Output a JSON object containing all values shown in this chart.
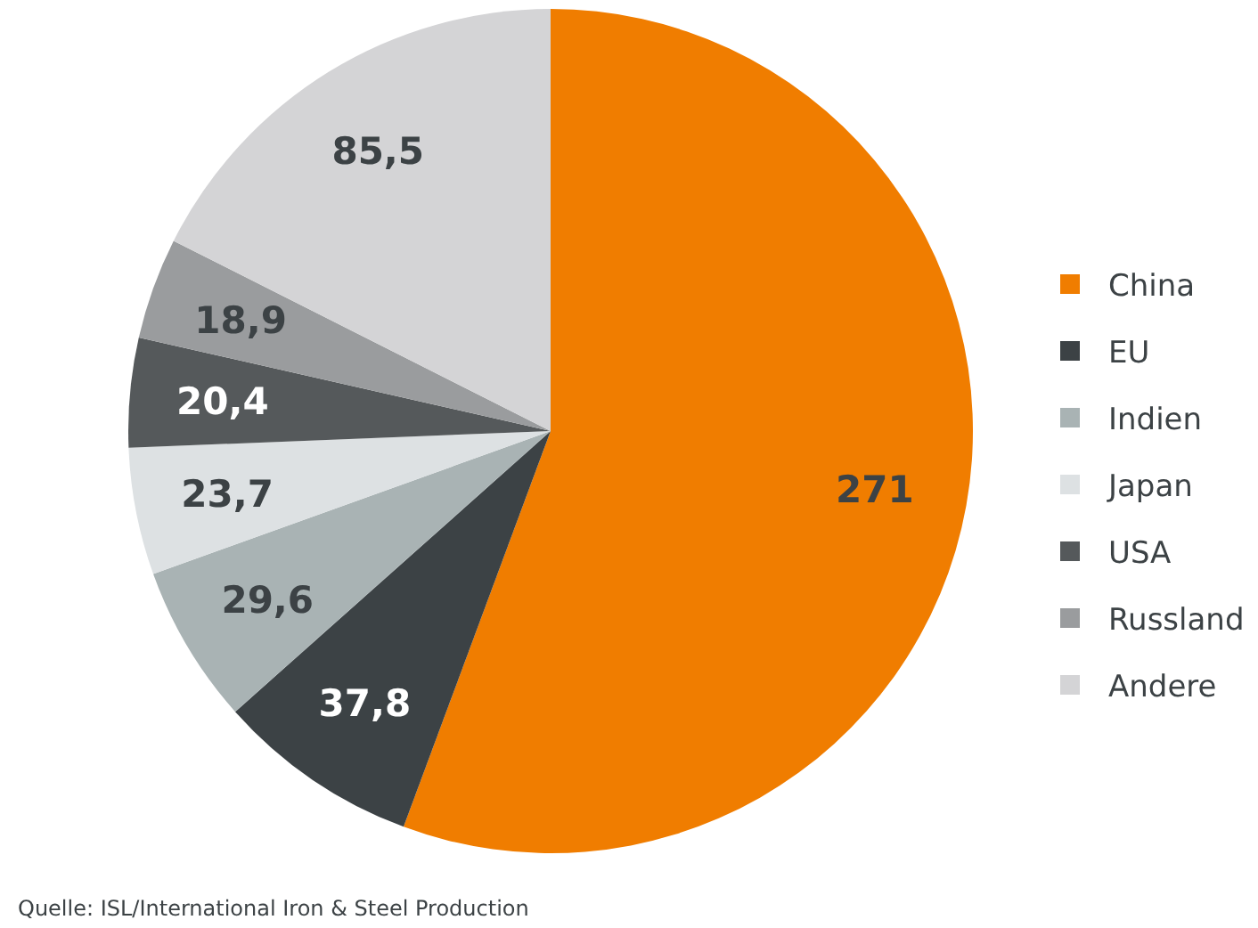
{
  "chart_data": {
    "type": "pie",
    "categories": [
      "China",
      "EU",
      "Indien",
      "Japan",
      "USA",
      "Russland",
      "Andere"
    ],
    "values": [
      271,
      37.8,
      29.6,
      23.7,
      20.4,
      18.9,
      85.5
    ],
    "value_labels": [
      "271",
      "37,8",
      "29,6",
      "23,7",
      "20,4",
      "18,9",
      "85,5"
    ],
    "colors": [
      "#f07d00",
      "#3c4245",
      "#a9b3b4",
      "#dde1e3",
      "#55595b",
      "#9a9c9e",
      "#d4d4d6"
    ],
    "legend": "right",
    "annotations": [
      "Quelle: ISL/International Iron & Steel Production"
    ]
  }
}
